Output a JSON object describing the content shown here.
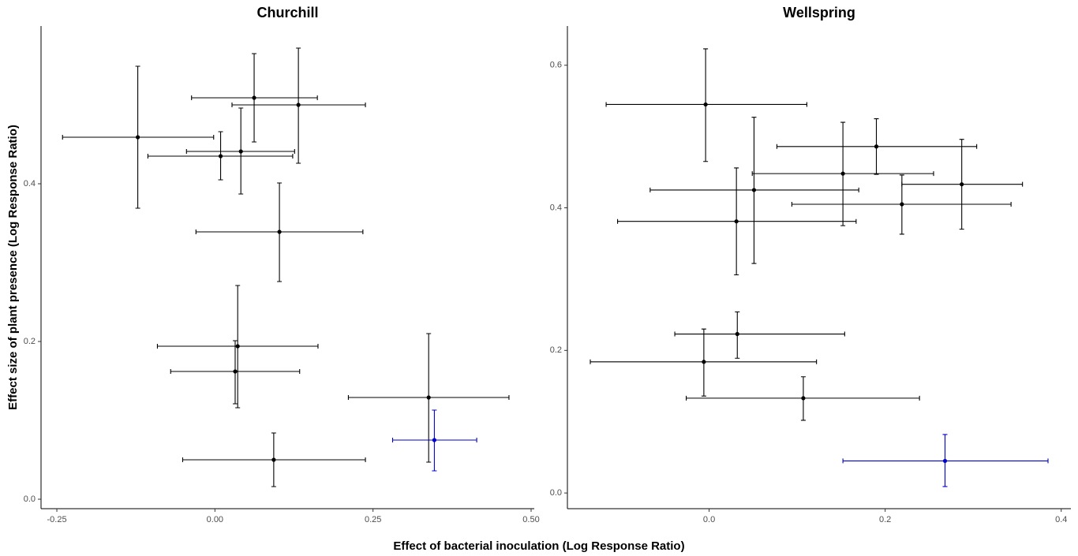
{
  "xlabel": "Effect of bacterial inoculation (Log Response Ratio)",
  "ylabel": "Effect size of plant presence (Log Response Ratio)",
  "chart_data": [
    {
      "type": "scatter",
      "title": "Churchill",
      "xlim": [
        -0.275,
        0.505
      ],
      "ylim": [
        -0.012,
        0.6
      ],
      "xticks": [
        -0.25,
        {
          "value": 0,
          "label": "0.00"
        },
        0.25,
        {
          "value": 0.5,
          "label": "0.50"
        }
      ],
      "yticks": [
        {
          "value": 0,
          "label": "0.0"
        },
        0.2,
        0.4
      ],
      "series": [
        {
          "color": "#000000",
          "x": [
            -0.122,
            0.062,
            0.132,
            0.041,
            0.009,
            0.102,
            0.036,
            0.032,
            0.338,
            0.093
          ],
          "y": [
            0.459,
            0.509,
            0.5,
            0.441,
            0.435,
            0.339,
            0.194,
            0.162,
            0.129,
            0.05
          ],
          "xmin": [
            -0.241,
            -0.037,
            0.027,
            -0.045,
            -0.106,
            -0.03,
            -0.091,
            -0.07,
            0.211,
            -0.051
          ],
          "xmax": [
            -0.002,
            0.162,
            0.238,
            0.126,
            0.123,
            0.234,
            0.163,
            0.134,
            0.465,
            0.238
          ],
          "ymin": [
            0.369,
            0.453,
            0.426,
            0.387,
            0.405,
            0.276,
            0.116,
            0.121,
            0.047,
            0.016
          ],
          "ymax": [
            0.549,
            0.565,
            0.572,
            0.496,
            0.466,
            0.401,
            0.271,
            0.201,
            0.21,
            0.084
          ]
        },
        {
          "color": "#0000cc",
          "x": [
            0.347
          ],
          "y": [
            0.075
          ],
          "xmin": [
            0.281
          ],
          "xmax": [
            0.414
          ],
          "ymin": [
            0.036
          ],
          "ymax": [
            0.113
          ]
        }
      ]
    },
    {
      "type": "scatter",
      "title": "Wellspring",
      "xlim": [
        -0.161,
        0.411
      ],
      "ylim": [
        -0.022,
        0.655
      ],
      "xticks": [
        {
          "value": 0,
          "label": "0.0"
        },
        0.2,
        0.4
      ],
      "yticks": [
        {
          "value": 0,
          "label": "0.0"
        },
        0.2,
        0.4,
        0.6
      ],
      "series": [
        {
          "color": "#000000",
          "x": [
            -0.004,
            0.19,
            0.152,
            0.287,
            0.051,
            0.219,
            0.031,
            0.032,
            -0.006,
            0.107
          ],
          "y": [
            0.545,
            0.486,
            0.448,
            0.433,
            0.425,
            0.405,
            0.381,
            0.223,
            0.184,
            0.133
          ],
          "xmin": [
            -0.117,
            0.077,
            0.049,
            0.219,
            -0.067,
            0.094,
            -0.104,
            -0.039,
            -0.135,
            -0.026
          ],
          "xmax": [
            0.111,
            0.304,
            0.255,
            0.356,
            0.17,
            0.343,
            0.167,
            0.154,
            0.122,
            0.239
          ],
          "ymin": [
            0.465,
            0.447,
            0.375,
            0.37,
            0.322,
            0.363,
            0.306,
            0.189,
            0.136,
            0.102
          ],
          "ymax": [
            0.623,
            0.525,
            0.52,
            0.496,
            0.527,
            0.446,
            0.456,
            0.254,
            0.23,
            0.163
          ]
        },
        {
          "color": "#0000cc",
          "x": [
            0.268
          ],
          "y": [
            0.045
          ],
          "xmin": [
            0.152
          ],
          "xmax": [
            0.385
          ],
          "ymin": [
            0.009
          ],
          "ymax": [
            0.082
          ]
        }
      ]
    }
  ]
}
